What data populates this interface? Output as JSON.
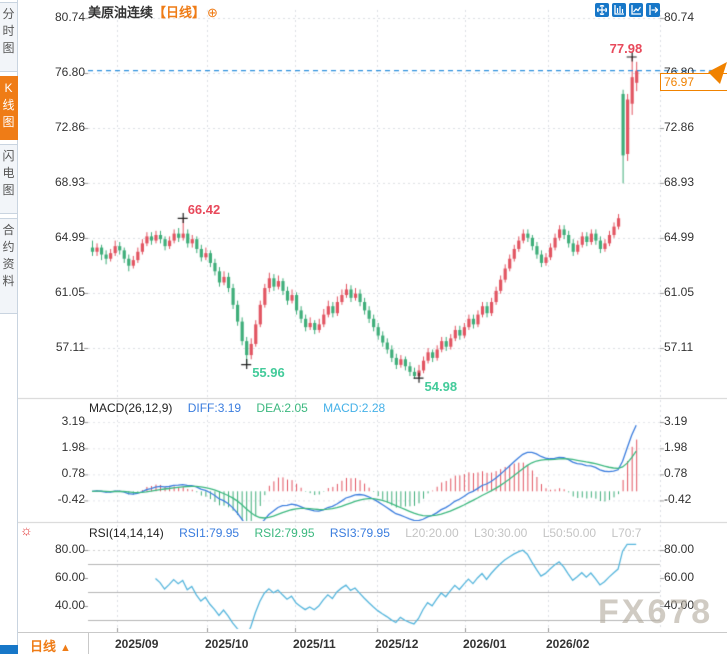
{
  "header": {
    "title": "美原油连续",
    "period_tag": "【日线】",
    "plus_icon": "⊕"
  },
  "sidebar": {
    "tabs": [
      {
        "label": "分时图",
        "active": false
      },
      {
        "label": "K线图",
        "active": true
      },
      {
        "label": "闪电图",
        "active": false
      },
      {
        "label": "合约资料",
        "active": false
      }
    ]
  },
  "toolbar": {
    "icons": [
      "crosshair-icon",
      "bar-scale-icon",
      "line-scale-icon",
      "exit-fullscreen-icon"
    ]
  },
  "price_axis": {
    "labels": [
      "80.74",
      "76.80",
      "72.86",
      "68.93",
      "64.99",
      "61.05",
      "57.11"
    ]
  },
  "x_axis": {
    "labels": [
      "2025/09",
      "2025/10",
      "2025/11",
      "2025/12",
      "2026/01",
      "2026/02"
    ]
  },
  "annotations": {
    "swing_high": "77.98",
    "sep_peak": "66.42",
    "oct_low": "55.96",
    "dec_low": "54.98",
    "current_price": "76.97"
  },
  "macd_header": {
    "name": "MACD(26,12,9)",
    "diff": "DIFF:3.19",
    "dea": "DEA:2.05",
    "macd": "MACD:2.28"
  },
  "macd_axis": {
    "labels": [
      "3.19",
      "1.98",
      "0.78",
      "-0.42"
    ]
  },
  "rsi_header": {
    "name": "RSI(14,14,14)",
    "rsi1": "RSI1:79.95",
    "rsi2": "RSI2:79.95",
    "rsi3": "RSI3:79.95",
    "levels": [
      "L20:20.00",
      "L30:30.00",
      "L50:50.00",
      "L70:7"
    ]
  },
  "rsi_axis": {
    "labels": [
      "80.00",
      "60.00",
      "40.00"
    ]
  },
  "footer": {
    "period_label": "日线",
    "arrow": "▲"
  },
  "watermark": "FX678",
  "colors": {
    "accent_orange": "#ef7c16",
    "icon_blue": "#1777c8",
    "up_red": "#e25562",
    "down_green": "#3fae7a",
    "ann_red": "#e8495b",
    "ann_mint": "#43cb9a",
    "diff_blue": "#3b7dde",
    "dea_green": "#3cb87f",
    "macd_cyan": "#45b1e8",
    "rsi_line": "#55b5dc",
    "dashed_line_blue": "#2b8fdd"
  },
  "chart_data": {
    "type": "candlestick",
    "title": "美原油连续 日线",
    "x_labels": [
      "2025/09",
      "2025/10",
      "2025/11",
      "2025/12",
      "2026/01",
      "2026/02"
    ],
    "price_ticks": [
      80.74,
      76.8,
      72.86,
      68.93,
      64.99,
      61.05,
      57.11
    ],
    "annotations": {
      "swing_high": 77.98,
      "sep_peak": 66.42,
      "oct_low": 55.96,
      "dec_low": 54.98,
      "current_price": 76.97
    },
    "marked_candles": {
      "sep_peak_idx": 20,
      "oct_low_idx": 34,
      "dec_low_idx": 72,
      "swing_high_idx": 119
    },
    "macd": {
      "params": [
        26,
        12,
        9
      ],
      "diff": 3.19,
      "dea": 2.05,
      "macd": 2.28,
      "axis_ticks": [
        3.19,
        1.98,
        0.78,
        -0.42
      ]
    },
    "rsi": {
      "params": [
        14,
        14,
        14
      ],
      "rsi1": 79.95,
      "rsi2": 79.95,
      "rsi3": 79.95,
      "levels": [
        20,
        30,
        50,
        70
      ],
      "axis_ticks": [
        80,
        60,
        40
      ]
    },
    "candles": [
      [
        64.3,
        64.8,
        63.7,
        64.0
      ],
      [
        64.0,
        64.6,
        63.7,
        64.3
      ],
      [
        64.3,
        64.5,
        63.4,
        63.8
      ],
      [
        63.8,
        64.1,
        63.1,
        63.5
      ],
      [
        63.5,
        64.2,
        63.3,
        63.9
      ],
      [
        63.9,
        64.8,
        63.7,
        64.4
      ],
      [
        64.4,
        64.7,
        63.8,
        64.1
      ],
      [
        64.1,
        64.3,
        63.2,
        63.5
      ],
      [
        63.5,
        63.8,
        62.6,
        63.0
      ],
      [
        63.0,
        63.7,
        62.8,
        63.4
      ],
      [
        63.4,
        64.3,
        63.2,
        64.0
      ],
      [
        64.0,
        64.9,
        63.8,
        64.6
      ],
      [
        64.6,
        65.4,
        64.4,
        65.1
      ],
      [
        65.1,
        65.4,
        64.5,
        64.8
      ],
      [
        64.8,
        65.5,
        64.6,
        65.2
      ],
      [
        65.2,
        65.5,
        64.6,
        64.9
      ],
      [
        64.9,
        65.1,
        64.1,
        64.4
      ],
      [
        64.4,
        65.1,
        64.2,
        64.8
      ],
      [
        64.8,
        65.6,
        64.6,
        65.3
      ],
      [
        65.3,
        65.7,
        64.7,
        65.0
      ],
      [
        65.0,
        66.42,
        64.8,
        65.3
      ],
      [
        65.3,
        65.6,
        64.3,
        64.6
      ],
      [
        64.6,
        65.2,
        64.3,
        64.9
      ],
      [
        64.9,
        65.1,
        63.9,
        64.2
      ],
      [
        64.2,
        64.5,
        63.3,
        63.6
      ],
      [
        63.6,
        64.3,
        63.4,
        63.9
      ],
      [
        63.9,
        64.1,
        62.9,
        63.2
      ],
      [
        63.2,
        63.5,
        62.3,
        62.6
      ],
      [
        62.6,
        62.9,
        61.5,
        61.8
      ],
      [
        61.8,
        62.6,
        61.6,
        62.2
      ],
      [
        62.2,
        62.5,
        61.1,
        61.4
      ],
      [
        61.4,
        61.7,
        59.9,
        60.2
      ],
      [
        60.2,
        60.5,
        58.7,
        59.0
      ],
      [
        59.0,
        59.3,
        57.3,
        57.6
      ],
      [
        57.6,
        57.9,
        55.96,
        56.6
      ],
      [
        56.6,
        57.8,
        56.3,
        57.4
      ],
      [
        57.4,
        59.1,
        57.2,
        58.8
      ],
      [
        58.8,
        60.5,
        58.6,
        60.2
      ],
      [
        60.2,
        61.7,
        60.0,
        61.4
      ],
      [
        61.4,
        62.5,
        61.1,
        62.1
      ],
      [
        62.1,
        62.4,
        61.2,
        61.5
      ],
      [
        61.5,
        62.3,
        61.3,
        61.9
      ],
      [
        61.9,
        62.1,
        60.9,
        61.2
      ],
      [
        61.2,
        61.5,
        60.2,
        60.5
      ],
      [
        60.5,
        61.3,
        60.3,
        60.9
      ],
      [
        60.9,
        61.1,
        59.5,
        59.8
      ],
      [
        59.8,
        60.1,
        58.9,
        59.2
      ],
      [
        59.2,
        59.5,
        58.3,
        58.6
      ],
      [
        58.6,
        59.3,
        58.4,
        58.9
      ],
      [
        58.9,
        59.1,
        58.1,
        58.4
      ],
      [
        58.4,
        59.2,
        58.2,
        58.8
      ],
      [
        58.8,
        59.9,
        58.6,
        59.5
      ],
      [
        59.5,
        60.5,
        59.3,
        60.1
      ],
      [
        60.1,
        60.4,
        59.3,
        59.6
      ],
      [
        59.6,
        60.8,
        59.4,
        60.4
      ],
      [
        60.4,
        61.3,
        60.2,
        60.9
      ],
      [
        60.9,
        61.7,
        60.7,
        61.3
      ],
      [
        61.3,
        61.6,
        60.4,
        60.7
      ],
      [
        60.7,
        61.4,
        60.5,
        61.0
      ],
      [
        61.0,
        61.3,
        60.1,
        60.4
      ],
      [
        60.4,
        60.7,
        59.5,
        59.8
      ],
      [
        59.8,
        60.1,
        58.9,
        59.2
      ],
      [
        59.2,
        59.5,
        58.3,
        58.6
      ],
      [
        58.6,
        58.9,
        57.7,
        58.0
      ],
      [
        58.0,
        58.3,
        57.2,
        57.5
      ],
      [
        57.5,
        57.8,
        56.7,
        57.0
      ],
      [
        57.0,
        57.3,
        56.1,
        56.4
      ],
      [
        56.4,
        56.7,
        55.6,
        55.9
      ],
      [
        55.9,
        56.6,
        55.7,
        56.3
      ],
      [
        56.3,
        56.5,
        55.5,
        55.8
      ],
      [
        55.8,
        56.1,
        55.1,
        55.4
      ],
      [
        55.4,
        55.7,
        54.9,
        55.1
      ],
      [
        55.1,
        55.9,
        54.98,
        55.5
      ],
      [
        55.5,
        56.5,
        55.3,
        56.2
      ],
      [
        56.2,
        57.1,
        56.0,
        56.8
      ],
      [
        56.8,
        57.0,
        56.1,
        56.4
      ],
      [
        56.4,
        57.3,
        56.2,
        57.0
      ],
      [
        57.0,
        57.9,
        56.8,
        57.6
      ],
      [
        57.6,
        57.9,
        56.9,
        57.2
      ],
      [
        57.2,
        58.1,
        57.0,
        57.8
      ],
      [
        57.8,
        58.7,
        57.6,
        58.4
      ],
      [
        58.4,
        58.7,
        57.7,
        58.0
      ],
      [
        58.0,
        58.9,
        57.8,
        58.6
      ],
      [
        58.6,
        59.5,
        58.4,
        59.2
      ],
      [
        59.2,
        59.5,
        58.5,
        58.8
      ],
      [
        58.8,
        59.8,
        58.6,
        59.5
      ],
      [
        59.5,
        60.4,
        59.3,
        60.1
      ],
      [
        60.1,
        60.4,
        59.3,
        59.6
      ],
      [
        59.6,
        60.7,
        59.4,
        60.4
      ],
      [
        60.4,
        61.5,
        60.2,
        61.2
      ],
      [
        61.2,
        62.3,
        61.0,
        62.0
      ],
      [
        62.0,
        63.1,
        61.8,
        62.8
      ],
      [
        62.8,
        63.8,
        62.6,
        63.5
      ],
      [
        63.5,
        64.5,
        63.3,
        64.2
      ],
      [
        64.2,
        65.1,
        64.0,
        64.8
      ],
      [
        64.8,
        65.6,
        64.6,
        65.3
      ],
      [
        65.3,
        65.6,
        64.7,
        65.0
      ],
      [
        65.0,
        65.2,
        64.1,
        64.4
      ],
      [
        64.4,
        64.7,
        63.5,
        63.8
      ],
      [
        63.8,
        64.1,
        62.9,
        63.2
      ],
      [
        63.2,
        63.9,
        63.0,
        63.6
      ],
      [
        63.6,
        64.6,
        63.4,
        64.3
      ],
      [
        64.3,
        65.3,
        64.1,
        65.0
      ],
      [
        65.0,
        65.9,
        64.8,
        65.6
      ],
      [
        65.6,
        65.9,
        64.9,
        65.2
      ],
      [
        65.2,
        65.5,
        64.3,
        64.6
      ],
      [
        64.6,
        64.9,
        63.7,
        64.0
      ],
      [
        64.0,
        64.8,
        63.8,
        64.5
      ],
      [
        64.5,
        65.4,
        64.3,
        65.1
      ],
      [
        65.1,
        65.4,
        64.4,
        64.7
      ],
      [
        64.7,
        65.6,
        64.5,
        65.3
      ],
      [
        65.3,
        65.6,
        64.5,
        64.8
      ],
      [
        64.8,
        65.1,
        63.9,
        64.2
      ],
      [
        64.2,
        64.9,
        64.0,
        64.6
      ],
      [
        64.6,
        65.5,
        64.4,
        65.2
      ],
      [
        65.2,
        66.1,
        65.0,
        65.8
      ],
      [
        65.8,
        66.7,
        65.6,
        66.4
      ],
      [
        75.3,
        75.6,
        68.9,
        70.9
      ],
      [
        71.0,
        75.3,
        70.5,
        74.9
      ],
      [
        74.6,
        77.98,
        73.8,
        76.5
      ],
      [
        76.1,
        77.6,
        75.5,
        76.97
      ]
    ]
  }
}
